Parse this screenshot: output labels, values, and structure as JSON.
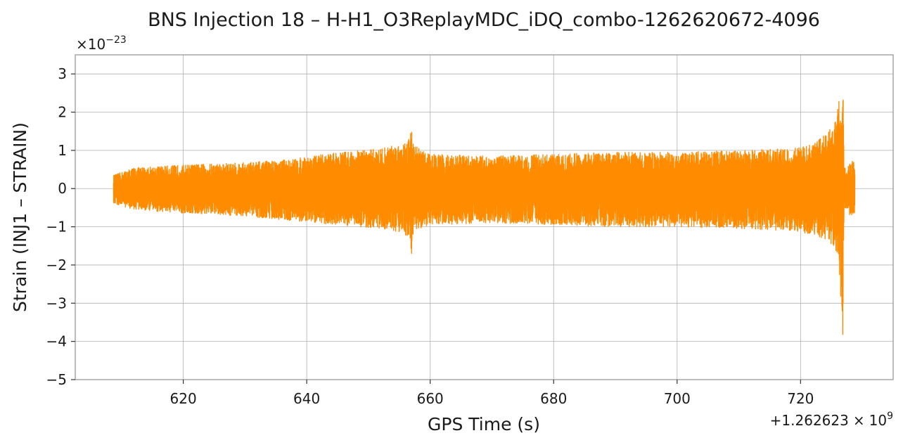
{
  "chart_data": {
    "type": "line",
    "title": "BNS Injection 18 – H-H1_O3ReplayMDC_iDQ_combo-1262620672-4096",
    "xlabel": "GPS Time (s)",
    "ylabel": "Strain (INJ1 – STRAIN)",
    "x_offset_label": {
      "prefix": "+1.262623",
      "times": "×",
      "base": "10",
      "exponent": "9"
    },
    "y_scale_label": {
      "times": "×",
      "base": "10",
      "exponent": "−23"
    },
    "xlim": [
      602.5,
      735
    ],
    "ylim": [
      -5,
      3.5
    ],
    "x_ticks": [
      620,
      640,
      660,
      680,
      700,
      720
    ],
    "y_ticks": [
      3,
      2,
      1,
      0,
      -1,
      -2,
      -3,
      -4,
      -5
    ],
    "y_tick_labels": [
      "3",
      "2",
      "1",
      "0",
      "−1",
      "−2",
      "−3",
      "−4",
      "−5"
    ],
    "grid": true,
    "line_color": "#ff8c00",
    "series": [
      {
        "time_range": [
          608.7,
          728.8
        ],
        "envelope": {
          "x": [
            608.7,
            612,
            620,
            630,
            638,
            645,
            652,
            655.5,
            656.7,
            657,
            657.3,
            660,
            670,
            680,
            690,
            700,
            710,
            718,
            722,
            724.5,
            725.5,
            726.2,
            726.6,
            726.8,
            726.9,
            727.1,
            727.4,
            728,
            728.8
          ],
          "upper": [
            0.35,
            0.55,
            0.62,
            0.68,
            0.78,
            0.95,
            1.05,
            1.2,
            1.35,
            1.95,
            1.15,
            0.9,
            0.85,
            0.9,
            0.95,
            0.95,
            1.0,
            1.05,
            1.15,
            1.5,
            1.7,
            2.3,
            2.8,
            3.1,
            2.4,
            0.6,
            0.45,
            0.7,
            0.75
          ],
          "lower": [
            -0.4,
            -0.55,
            -0.65,
            -0.72,
            -0.85,
            -0.95,
            -1.05,
            -1.15,
            -1.3,
            -1.8,
            -1.1,
            -0.95,
            -0.9,
            -0.95,
            -1.0,
            -1.0,
            -1.05,
            -1.1,
            -1.2,
            -1.4,
            -1.55,
            -1.9,
            -3.2,
            -4.6,
            -2.8,
            -0.6,
            -0.5,
            -0.7,
            -0.75
          ]
        }
      }
    ]
  }
}
